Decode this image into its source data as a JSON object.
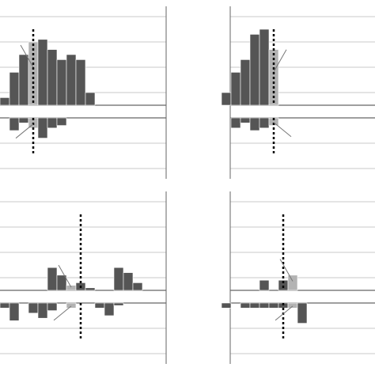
{
  "colors": {
    "bar_dark": "#555555",
    "bar_light": "#b3b3b3",
    "grid": "#c8c8c8",
    "axis": "#666666",
    "marker": "#000000",
    "callout": "#777777"
  },
  "chart_data": [
    {
      "type": "bar",
      "panel": "top-left",
      "grid": true,
      "bin_start": -7,
      "bins_visible": 7,
      "upper": [
        0,
        0,
        0,
        0,
        0,
        0,
        0,
        0.3,
        1.3,
        2.0,
        2.5,
        2.6,
        2.2,
        1.8,
        2.0,
        1.8,
        0.5
      ],
      "lower": [
        0,
        0,
        0,
        0,
        0,
        0,
        0,
        0,
        -0.5,
        -0.2,
        -0.4,
        -0.8,
        -0.4,
        -0.3,
        0,
        0,
        0
      ],
      "highlight_bin": 10,
      "marker_bin": 10.5,
      "upper_ylim": [
        0,
        3.5
      ],
      "lower_ylim": [
        -2.5,
        0
      ]
    },
    {
      "type": "bar",
      "panel": "top-right",
      "grid": true,
      "bin_start": -5,
      "bins_visible": 7,
      "upper": [
        0,
        0,
        0,
        0,
        0,
        0.5,
        1.3,
        1.8,
        2.8,
        3.0,
        2.2
      ],
      "lower": [
        0,
        0,
        0,
        0,
        0,
        0,
        -0.4,
        -0.2,
        -0.5,
        -0.4,
        -0.3
      ],
      "highlight_bin": 10,
      "marker_bin": 10.5,
      "upper_ylim": [
        0,
        3.5
      ],
      "lower_ylim": [
        -2.5,
        0
      ]
    },
    {
      "type": "bar",
      "panel": "bottom-left",
      "grid": true,
      "bin_start": -7,
      "bins_visible": 7,
      "upper": [
        0,
        0,
        0,
        0,
        0,
        0,
        0,
        0,
        0,
        0,
        0,
        0,
        0.9,
        0.6,
        0.2,
        0.3,
        0.1,
        0,
        0,
        0.9,
        0.7,
        0.3
      ],
      "lower": [
        -0.2,
        0,
        -0.2,
        0,
        0,
        0,
        0,
        -0.2,
        -0.7,
        0,
        -0.4,
        -0.6,
        -0.3,
        0,
        -0.2,
        0,
        0,
        -0.2,
        -0.5,
        -0.1,
        0,
        0
      ],
      "highlight_bin": 14,
      "marker_bin": 15.5,
      "upper_ylim": [
        0,
        3.5
      ],
      "lower_ylim": [
        -2.5,
        0
      ]
    },
    {
      "type": "bar",
      "panel": "bottom-right",
      "grid": true,
      "bin_start": -5,
      "bins_visible": 7,
      "upper": [
        0,
        0,
        0,
        0,
        0,
        0,
        0,
        0,
        0,
        0.4,
        0,
        0.4,
        0.6,
        0
      ],
      "lower": [
        0,
        0,
        0,
        0,
        0,
        -0.2,
        0,
        -0.2,
        -0.2,
        -0.2,
        -0.2,
        -0.2,
        -0.2,
        -0.8
      ],
      "highlight_bin": 12,
      "marker_bin": 11.5,
      "upper_ylim": [
        0,
        3.5
      ],
      "lower_ylim": [
        -2.5,
        0
      ]
    }
  ]
}
